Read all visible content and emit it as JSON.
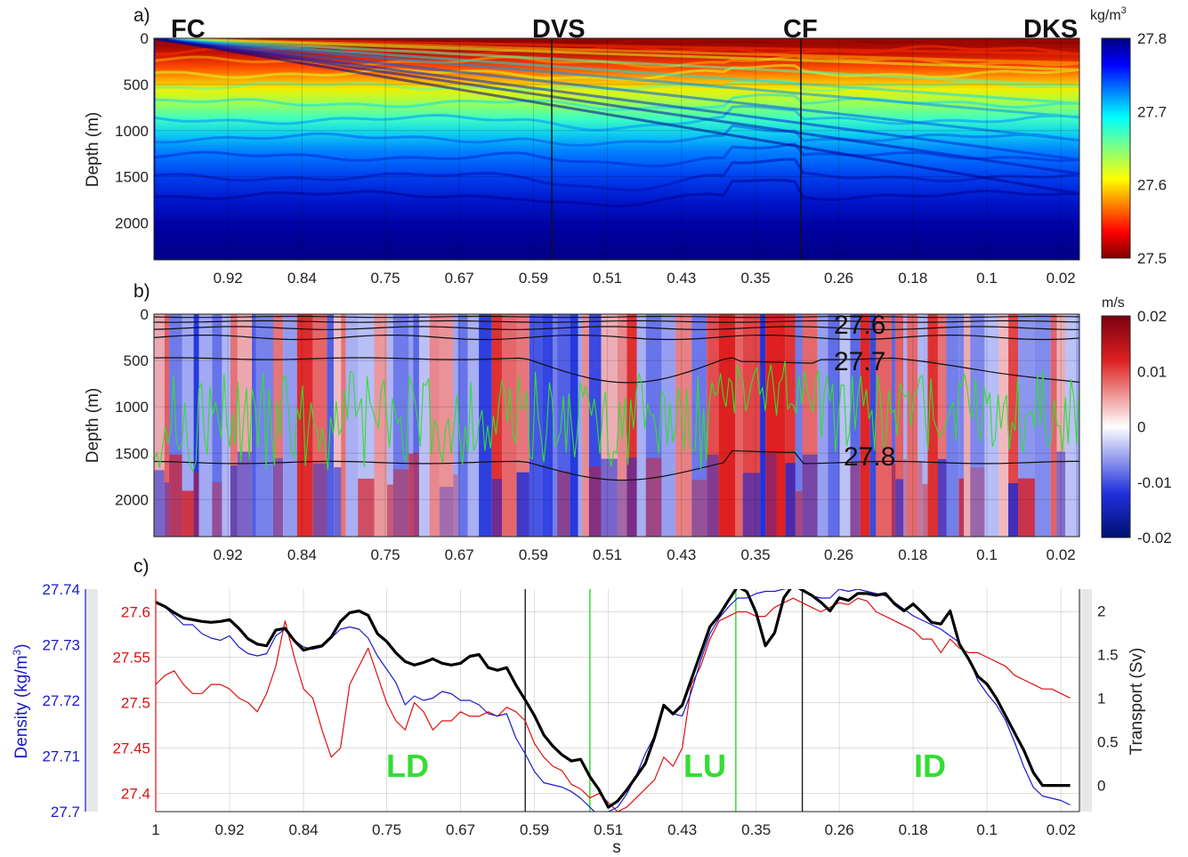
{
  "panels": {
    "a": {
      "label": "a)",
      "ylabel": "Depth (m)",
      "colorbar_unit": "kg/m",
      "colorbar_unit_sup": "3",
      "colorbar_ticks": [
        "27.8",
        "27.7",
        "27.6",
        "27.5"
      ],
      "region_labels": [
        "FC",
        "DVS",
        "CF",
        "DKS"
      ]
    },
    "b": {
      "label": "b)",
      "ylabel": "Depth (m)",
      "colorbar_unit": "m/s",
      "colorbar_ticks": [
        "0.02",
        "0.01",
        "0",
        "-0.01",
        "-0.02"
      ],
      "contour_labels": [
        "27.6",
        "27.7",
        "27.8"
      ]
    },
    "c": {
      "label": "c)",
      "xlabel": "s",
      "ylabel_left": "Density (kg/m",
      "ylabel_left_sup": "3",
      "ylabel_left_close": ")",
      "ylabel_right": "Transport (Sv)",
      "region_labels": [
        "LD",
        "LU",
        "ID"
      ]
    }
  },
  "chart_data": [
    {
      "type": "heatmap",
      "panel": "a",
      "quantity": "density",
      "x_ticks": [
        "0.92",
        "0.84",
        "0.75",
        "0.67",
        "0.59",
        "0.51",
        "0.43",
        "0.35",
        "0.26",
        "0.18",
        "0.1",
        "0.02"
      ],
      "y_ticks": [
        "0",
        "500",
        "1000",
        "1500",
        "2000"
      ],
      "ylim": [
        0,
        2400
      ],
      "clim": [
        27.5,
        27.8
      ],
      "colormap": "jet",
      "section_markers_s": [
        0.6,
        0.3
      ]
    },
    {
      "type": "heatmap",
      "panel": "b",
      "quantity": "velocity",
      "x_ticks": [
        "0.92",
        "0.84",
        "0.75",
        "0.67",
        "0.59",
        "0.51",
        "0.43",
        "0.35",
        "0.26",
        "0.18",
        "0.1",
        "0.02"
      ],
      "y_ticks": [
        "0",
        "500",
        "1000",
        "1500",
        "2000"
      ],
      "ylim": [
        0,
        2400
      ],
      "clim": [
        -0.02,
        0.02
      ],
      "colormap": "red-white-blue"
    },
    {
      "type": "line",
      "panel": "c",
      "x_ticks": [
        "1",
        "0.92",
        "0.84",
        "0.75",
        "0.67",
        "0.59",
        "0.51",
        "0.43",
        "0.35",
        "0.26",
        "0.18",
        "0.1",
        "0.02"
      ],
      "xlim": [
        1,
        0
      ],
      "y_left_outer_ticks": [
        "27.74",
        "27.73",
        "27.72",
        "27.71",
        "27.7"
      ],
      "y_left_outer_lim": [
        27.7,
        27.74
      ],
      "y_left_inner_ticks": [
        "27.6",
        "27.55",
        "27.5",
        "27.45",
        "27.4"
      ],
      "y_left_inner_lim": [
        27.38,
        27.625
      ],
      "y_right_ticks": [
        "2",
        "1.5",
        "1",
        "0.5",
        "0"
      ],
      "y_right_lim": [
        -0.3,
        2.25
      ],
      "grid": true,
      "vertical_lines_black_s": [
        0.6,
        0.3
      ],
      "vertical_lines_green_s": [
        0.53,
        0.372
      ],
      "s": [
        1.0,
        0.99,
        0.98,
        0.97,
        0.96,
        0.95,
        0.94,
        0.93,
        0.92,
        0.91,
        0.9,
        0.89,
        0.88,
        0.87,
        0.86,
        0.85,
        0.84,
        0.83,
        0.82,
        0.81,
        0.8,
        0.79,
        0.78,
        0.77,
        0.76,
        0.75,
        0.74,
        0.73,
        0.72,
        0.71,
        0.7,
        0.69,
        0.68,
        0.67,
        0.66,
        0.65,
        0.64,
        0.63,
        0.62,
        0.61,
        0.6,
        0.59,
        0.58,
        0.57,
        0.56,
        0.55,
        0.54,
        0.53,
        0.52,
        0.51,
        0.5,
        0.49,
        0.48,
        0.47,
        0.46,
        0.45,
        0.44,
        0.43,
        0.42,
        0.41,
        0.4,
        0.39,
        0.38,
        0.37,
        0.36,
        0.35,
        0.34,
        0.33,
        0.32,
        0.31,
        0.3,
        0.29,
        0.28,
        0.27,
        0.26,
        0.25,
        0.24,
        0.23,
        0.22,
        0.21,
        0.2,
        0.19,
        0.18,
        0.17,
        0.16,
        0.15,
        0.14,
        0.13,
        0.12,
        0.11,
        0.1,
        0.09,
        0.08,
        0.07,
        0.06,
        0.05,
        0.04,
        0.03,
        0.02,
        0.01
      ],
      "series": [
        {
          "axis": "right",
          "color": "#000000",
          "values": [
            2.1,
            2.05,
            1.98,
            1.92,
            1.9,
            1.88,
            1.87,
            1.88,
            1.9,
            1.8,
            1.68,
            1.62,
            1.6,
            1.78,
            1.8,
            1.66,
            1.55,
            1.58,
            1.6,
            1.7,
            1.88,
            1.98,
            2.0,
            1.95,
            1.74,
            1.65,
            1.52,
            1.42,
            1.38,
            1.41,
            1.45,
            1.4,
            1.38,
            1.4,
            1.48,
            1.5,
            1.35,
            1.32,
            1.35,
            1.15,
            0.98,
            0.8,
            0.58,
            0.45,
            0.35,
            0.28,
            0.3,
            0.1,
            -0.05,
            -0.25,
            -0.18,
            -0.05,
            0.1,
            0.25,
            0.55,
            0.92,
            0.82,
            0.92,
            1.22,
            1.52,
            1.82,
            1.95,
            2.12,
            2.28,
            2.22,
            1.98,
            1.6,
            1.75,
            2.15,
            2.3,
            2.24,
            2.18,
            2.1,
            2.0,
            2.15,
            2.12,
            2.2,
            2.2,
            2.18,
            2.2,
            2.08,
            2.0,
            2.08,
            1.98,
            1.87,
            1.85,
            2.0,
            1.62,
            1.45,
            1.25,
            1.16,
            1.0,
            0.8,
            0.6,
            0.4,
            0.15,
            0.0,
            0.0,
            0.0,
            0.0
          ]
        },
        {
          "axis": "left_outer",
          "color": "#1a1acc",
          "values": [
            27.7376,
            27.7368,
            27.7352,
            27.7336,
            27.7336,
            27.732,
            27.7312,
            27.7308,
            27.7316,
            27.7296,
            27.7284,
            27.728,
            27.7284,
            27.7316,
            27.7328,
            27.7308,
            27.7296,
            27.7292,
            27.7296,
            27.7312,
            27.7328,
            27.7332,
            27.7328,
            27.7312,
            27.728,
            27.7256,
            27.7232,
            27.7192,
            27.7208,
            27.72,
            27.7204,
            27.7216,
            27.7212,
            27.72,
            27.72,
            27.7192,
            27.7176,
            27.7172,
            27.7176,
            27.7132,
            27.7104,
            27.7072,
            27.7052,
            27.7048,
            27.7044,
            27.7036,
            27.7024,
            27.7008,
            27.6992,
            27.7,
            27.7008,
            27.7032,
            27.7064,
            27.7104,
            27.7136,
            27.7188,
            27.7176,
            27.7172,
            27.7216,
            27.7272,
            27.732,
            27.7348,
            27.7368,
            27.7384,
            27.7384,
            27.7392,
            27.7396,
            27.7396,
            27.74,
            27.7404,
            27.74,
            27.7388,
            27.7384,
            27.7384,
            27.74,
            27.7396,
            27.74,
            27.7396,
            27.7392,
            27.7388,
            27.7376,
            27.7364,
            27.7352,
            27.7344,
            27.7336,
            27.7328,
            27.7316,
            27.7304,
            27.7276,
            27.7236,
            27.7212,
            27.7192,
            27.7164,
            27.7124,
            27.708,
            27.7044,
            27.7028,
            27.7024,
            27.702,
            27.7012
          ]
        },
        {
          "axis": "left_inner",
          "color": "#dd1111",
          "values": [
            27.52,
            27.53,
            27.535,
            27.52,
            27.51,
            27.51,
            27.52,
            27.52,
            27.515,
            27.505,
            27.5,
            27.49,
            27.51,
            27.54,
            27.59,
            27.55,
            27.515,
            27.505,
            27.47,
            27.44,
            27.45,
            27.52,
            27.54,
            27.56,
            27.53,
            27.5,
            27.48,
            27.47,
            27.5,
            27.49,
            27.47,
            27.48,
            27.48,
            27.49,
            27.485,
            27.485,
            27.49,
            27.485,
            27.495,
            27.49,
            27.48,
            27.455,
            27.44,
            27.43,
            27.425,
            27.41,
            27.405,
            27.395,
            27.4,
            27.39,
            27.38,
            27.385,
            27.395,
            27.405,
            27.415,
            27.44,
            27.43,
            27.45,
            27.52,
            27.54,
            27.57,
            27.59,
            27.595,
            27.6,
            27.6,
            27.595,
            27.595,
            27.605,
            27.61,
            27.615,
            27.61,
            27.605,
            27.6,
            27.605,
            27.61,
            27.608,
            27.615,
            27.612,
            27.6,
            27.595,
            27.59,
            27.585,
            27.58,
            27.57,
            27.57,
            27.555,
            27.57,
            27.56,
            27.555,
            27.555,
            27.55,
            27.545,
            27.54,
            27.53,
            27.525,
            27.52,
            27.515,
            27.515,
            27.51,
            27.505
          ]
        }
      ]
    }
  ]
}
